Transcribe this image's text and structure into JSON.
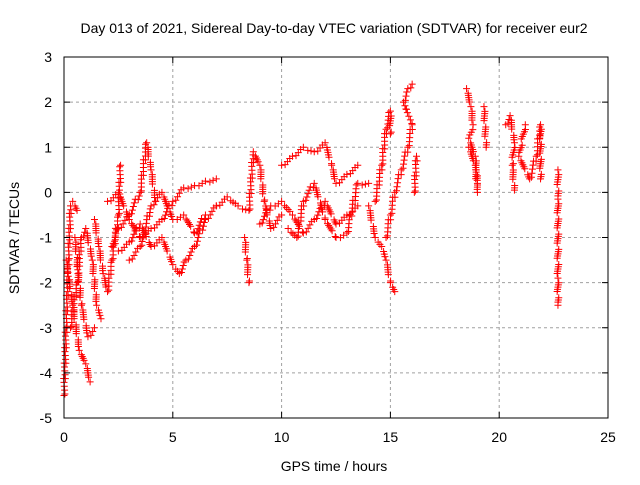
{
  "chart_data": {
    "type": "scatter",
    "title": "Day 013 of 2021, Sidereal Day-to-day VTEC variation (SDTVAR) for receiver eur2",
    "xlabel": "GPS time / hours",
    "ylabel": "SDTVAR / TECUs",
    "xlim": [
      0,
      25
    ],
    "ylim": [
      -5,
      3
    ],
    "xticks": [
      "0",
      "5",
      "10",
      "15",
      "20",
      "25"
    ],
    "xtick_values": [
      0,
      5,
      10,
      15,
      20,
      25
    ],
    "yticks": [
      "-5",
      "-4",
      "-3",
      "-2",
      "-1",
      "0",
      "1",
      "2",
      "3"
    ],
    "ytick_values": [
      -5,
      -4,
      -3,
      -2,
      -1,
      0,
      1,
      2,
      3
    ],
    "grid": true,
    "marker": "plus",
    "color": "#ff0000",
    "tracks": [
      [
        [
          0,
          -4.5
        ],
        [
          0.1,
          -3
        ],
        [
          0.2,
          -1.5
        ],
        [
          0.3,
          -0.3
        ],
        [
          0.4,
          -0.2
        ],
        [
          0.6,
          -0.4
        ]
      ],
      [
        [
          0.1,
          -1.5
        ],
        [
          0.4,
          -2.5
        ],
        [
          0.7,
          -3.5
        ],
        [
          1,
          -3.8
        ],
        [
          1.2,
          -4.2
        ]
      ],
      [
        [
          0.3,
          -3
        ],
        [
          0.6,
          -2
        ],
        [
          0.8,
          -1
        ],
        [
          1,
          -0.8
        ],
        [
          1.3,
          -1.5
        ],
        [
          1.5,
          -2.5
        ],
        [
          1.7,
          -2.8
        ]
      ],
      [
        [
          0.5,
          -1
        ],
        [
          0.8,
          -2.5
        ],
        [
          1.1,
          -3.2
        ],
        [
          1.4,
          -3
        ]
      ],
      [
        [
          1.4,
          -0.6
        ],
        [
          1.6,
          -1.2
        ],
        [
          1.8,
          -1.8
        ],
        [
          2,
          -2.2
        ],
        [
          2.2,
          -1.5
        ],
        [
          2.5,
          -0.5
        ],
        [
          2.6,
          0.6
        ]
      ],
      [
        [
          2.2,
          -1.2
        ],
        [
          2.5,
          -0.8
        ],
        [
          3,
          -0.5
        ],
        [
          3.5,
          0
        ],
        [
          3.8,
          1.1
        ],
        [
          4,
          0.5
        ],
        [
          4.2,
          -0.2
        ]
      ],
      [
        [
          2,
          -0.2
        ],
        [
          2.5,
          0
        ],
        [
          3,
          -0.6
        ],
        [
          3.5,
          -1
        ],
        [
          4,
          -0.8
        ],
        [
          4.5,
          -0.6
        ],
        [
          5,
          -0.2
        ],
        [
          5.5,
          0.1
        ],
        [
          6,
          0.15
        ],
        [
          6.5,
          0.25
        ],
        [
          7,
          0.3
        ]
      ],
      [
        [
          2.5,
          -1.3
        ],
        [
          3,
          -1.1
        ],
        [
          3.5,
          -0.7
        ],
        [
          4,
          -1.2
        ],
        [
          4.5,
          -1
        ],
        [
          5,
          -1.6
        ],
        [
          5.3,
          -1.8
        ],
        [
          5.6,
          -1.5
        ],
        [
          6,
          -1.2
        ],
        [
          6.5,
          -0.6
        ],
        [
          7,
          -0.3
        ]
      ],
      [
        [
          3,
          -1.5
        ],
        [
          3.5,
          -1.2
        ],
        [
          4,
          -0.3
        ],
        [
          4.5,
          0
        ],
        [
          5,
          -0.6
        ],
        [
          5.5,
          -0.5
        ],
        [
          6,
          -0.9
        ],
        [
          6.5,
          -0.5
        ]
      ],
      [
        [
          7,
          -0.3
        ],
        [
          7.5,
          -0.1
        ],
        [
          8,
          -0.3
        ],
        [
          8.5,
          -0.4
        ],
        [
          8.7,
          0.9
        ],
        [
          9,
          0.6
        ],
        [
          9.2,
          -0.2
        ],
        [
          9.5,
          -0.8
        ],
        [
          10,
          -0.5
        ]
      ],
      [
        [
          8.3,
          -1
        ],
        [
          8.4,
          -1.5
        ],
        [
          8.5,
          -2
        ]
      ],
      [
        [
          9,
          -0.7
        ],
        [
          9.5,
          -0.3
        ],
        [
          10,
          -0.2
        ],
        [
          10.5,
          -0.5
        ],
        [
          11,
          -0.9
        ],
        [
          11.5,
          -0.6
        ],
        [
          12,
          -0.2
        ],
        [
          12.5,
          -0.7
        ],
        [
          13,
          -0.5
        ],
        [
          13.5,
          -0.3
        ]
      ],
      [
        [
          10,
          0.6
        ],
        [
          10.5,
          0.8
        ],
        [
          11,
          1.0
        ],
        [
          11.5,
          0.9
        ],
        [
          12,
          1.1
        ],
        [
          12.3,
          0.6
        ],
        [
          12.5,
          0.2
        ],
        [
          13,
          0.4
        ],
        [
          13.5,
          0.6
        ]
      ],
      [
        [
          10.3,
          -0.8
        ],
        [
          10.7,
          -1
        ],
        [
          11,
          -0.2
        ],
        [
          11.5,
          0.2
        ],
        [
          12,
          -0.6
        ],
        [
          12.5,
          -1
        ],
        [
          13,
          -0.9
        ],
        [
          13.5,
          0.2
        ],
        [
          14,
          0.2
        ]
      ],
      [
        [
          14,
          -0.3
        ],
        [
          14.3,
          -1
        ],
        [
          14.6,
          -1.2
        ],
        [
          14.8,
          -1.5
        ],
        [
          15,
          -2
        ],
        [
          15.2,
          -2.2
        ]
      ],
      [
        [
          14.3,
          -0.2
        ],
        [
          14.6,
          0.6
        ],
        [
          14.8,
          1.4
        ],
        [
          15,
          1.8
        ],
        [
          15,
          1.3
        ]
      ],
      [
        [
          14.8,
          -1
        ],
        [
          15,
          -0.5
        ],
        [
          15.2,
          0
        ],
        [
          15.5,
          0.5
        ],
        [
          15.8,
          1
        ],
        [
          16,
          1.5
        ],
        [
          15.6,
          2
        ],
        [
          15.8,
          2.3
        ],
        [
          16,
          2.4
        ]
      ],
      [
        [
          16.1,
          0
        ],
        [
          16.2,
          0.8
        ]
      ],
      [
        [
          18.5,
          2.3
        ],
        [
          18.7,
          1.9
        ],
        [
          18.8,
          1.5
        ],
        [
          18.6,
          1.2
        ],
        [
          18.9,
          0.8
        ],
        [
          19,
          0.2
        ]
      ],
      [
        [
          18.6,
          1.0
        ],
        [
          18.9,
          0.6
        ],
        [
          19,
          0
        ]
      ],
      [
        [
          19.3,
          1.9
        ],
        [
          19.4,
          1.0
        ]
      ],
      [
        [
          20.3,
          1.5
        ],
        [
          20.5,
          1.7
        ],
        [
          20.7,
          1.1
        ],
        [
          20.6,
          0.6
        ],
        [
          20.7,
          0.05
        ]
      ],
      [
        [
          21.2,
          1.5
        ],
        [
          20.9,
          0.8
        ],
        [
          21.4,
          0.3
        ],
        [
          21.7,
          0.8
        ],
        [
          21.9,
          1.5
        ],
        [
          21.9,
          0.3
        ]
      ],
      [
        [
          22.7,
          0.5
        ],
        [
          22.7,
          -0.15
        ],
        [
          22.7,
          -1.9
        ],
        [
          22.7,
          -2.5
        ]
      ]
    ]
  }
}
